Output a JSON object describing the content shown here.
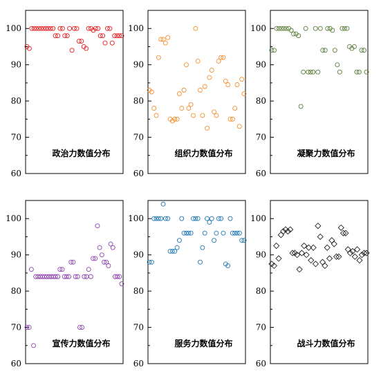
{
  "chart_data": [
    {
      "type": "scatter",
      "title": "政治力数值分布",
      "marker": "circle",
      "color": "#e41a1c",
      "ylim": [
        60,
        105
      ],
      "yticks": [
        60,
        70,
        80,
        90,
        100
      ],
      "grid": false,
      "y": [
        95,
        94.5,
        100,
        100,
        100,
        100,
        100,
        100,
        100,
        100,
        100,
        100,
        98,
        98,
        100,
        100,
        98,
        98,
        100,
        94,
        100,
        100,
        96.5,
        96.5,
        95,
        94.5,
        100,
        100,
        99.5,
        100,
        100,
        98,
        98,
        96,
        100,
        100,
        96,
        98,
        98,
        98,
        98
      ]
    },
    {
      "type": "scatter",
      "title": "组织力数值分布",
      "marker": "circle",
      "color": "#f28e2b",
      "ylim": [
        60,
        105
      ],
      "yticks": [
        60,
        70,
        80,
        90,
        100
      ],
      "grid": false,
      "y": [
        83,
        82.5,
        78,
        76,
        92,
        97,
        97,
        96,
        97.5,
        75,
        74.5,
        75,
        75,
        82,
        78,
        83,
        90,
        78,
        79,
        76,
        100,
        91,
        83,
        76,
        84,
        72.5,
        86.5,
        88.5,
        77,
        76,
        91,
        92,
        92,
        85.5,
        84.5,
        75,
        75,
        78,
        84.5,
        73,
        86,
        82
      ]
    },
    {
      "type": "scatter",
      "title": "凝聚力数值分布",
      "marker": "circle",
      "color": "#5a7d3a",
      "ylim": [
        60,
        105
      ],
      "yticks": [
        60,
        70,
        80,
        90,
        100
      ],
      "grid": false,
      "y": [
        94,
        94,
        100,
        100,
        100,
        100,
        100,
        100,
        99.5,
        98.5,
        98.5,
        98,
        78.5,
        88,
        100,
        88,
        88,
        88,
        100,
        88,
        100,
        94,
        94,
        100,
        100,
        99.5,
        94,
        90,
        88,
        100,
        100,
        100,
        95,
        94.5,
        95,
        88,
        88,
        94,
        94,
        88
      ]
    },
    {
      "type": "scatter",
      "title": "宣传力数值分布",
      "marker": "circle",
      "color": "#8e44ad",
      "ylim": [
        60,
        105
      ],
      "yticks": [
        60,
        70,
        80,
        90,
        100
      ],
      "grid": false,
      "y": [
        70,
        70,
        86,
        65,
        84,
        84,
        84,
        84,
        84,
        84,
        84,
        84,
        84,
        84,
        84,
        86,
        86,
        84,
        84,
        84,
        88,
        88,
        84,
        84,
        70,
        70,
        84,
        84,
        86,
        84,
        89,
        89,
        98,
        92,
        90,
        88,
        88,
        87,
        93,
        92,
        84,
        84,
        84,
        82
      ]
    },
    {
      "type": "scatter",
      "title": "服务力数值分布",
      "marker": "circle",
      "color": "#1f77b4",
      "ylim": [
        60,
        105
      ],
      "yticks": [
        60,
        70,
        80,
        90,
        100
      ],
      "grid": false,
      "y": [
        88,
        88,
        100,
        100,
        100,
        100,
        104,
        100,
        100,
        91,
        91,
        91,
        92,
        94,
        100,
        96,
        96,
        96,
        96,
        100,
        100,
        100,
        88,
        92,
        96,
        100,
        99,
        100,
        94,
        96,
        100,
        100,
        96,
        87.5,
        87,
        100,
        96,
        96,
        96,
        96,
        94,
        94
      ]
    },
    {
      "type": "scatter",
      "title": "战斗力数值分布",
      "marker": "diamond",
      "color": "#222222",
      "ylim": [
        60,
        105
      ],
      "yticks": [
        60,
        70,
        80,
        90,
        100
      ],
      "grid": false,
      "y": [
        87.5,
        87,
        92.5,
        89,
        95.5,
        96.5,
        97,
        96.5,
        97,
        90.5,
        90.5,
        90,
        86,
        90.5,
        92.5,
        90,
        92,
        88.5,
        92,
        87.5,
        98,
        95,
        88,
        87,
        92,
        89,
        94,
        93,
        89.5,
        89.5,
        97.5,
        96,
        96,
        91.5,
        90.5,
        91,
        89.5,
        91.5,
        88.5,
        90,
        90.5,
        90.5
      ]
    }
  ]
}
